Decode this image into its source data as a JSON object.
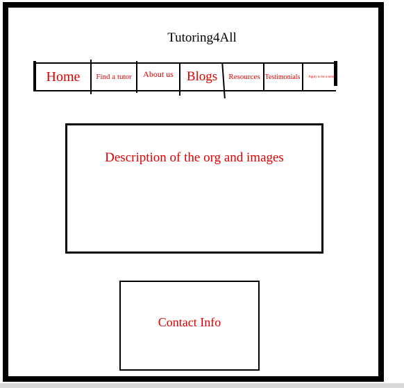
{
  "site": {
    "title": "Tutoring4All"
  },
  "nav": {
    "items": [
      {
        "id": "home",
        "label": "Home"
      },
      {
        "id": "find-a-tutor",
        "label": "Find a tutor"
      },
      {
        "id": "about-us",
        "label": "About us"
      },
      {
        "id": "blogs",
        "label": "Blogs"
      },
      {
        "id": "resources",
        "label": "Resources"
      },
      {
        "id": "testimonials",
        "label": "Testimonials"
      },
      {
        "id": "apply",
        "label": "Apply to be a tutor"
      }
    ]
  },
  "main": {
    "description": "Description of the org and images"
  },
  "contact": {
    "label": "Contact Info"
  },
  "colors": {
    "text_accent": "#e00000",
    "frame": "#000000",
    "background": "#ffffff"
  }
}
